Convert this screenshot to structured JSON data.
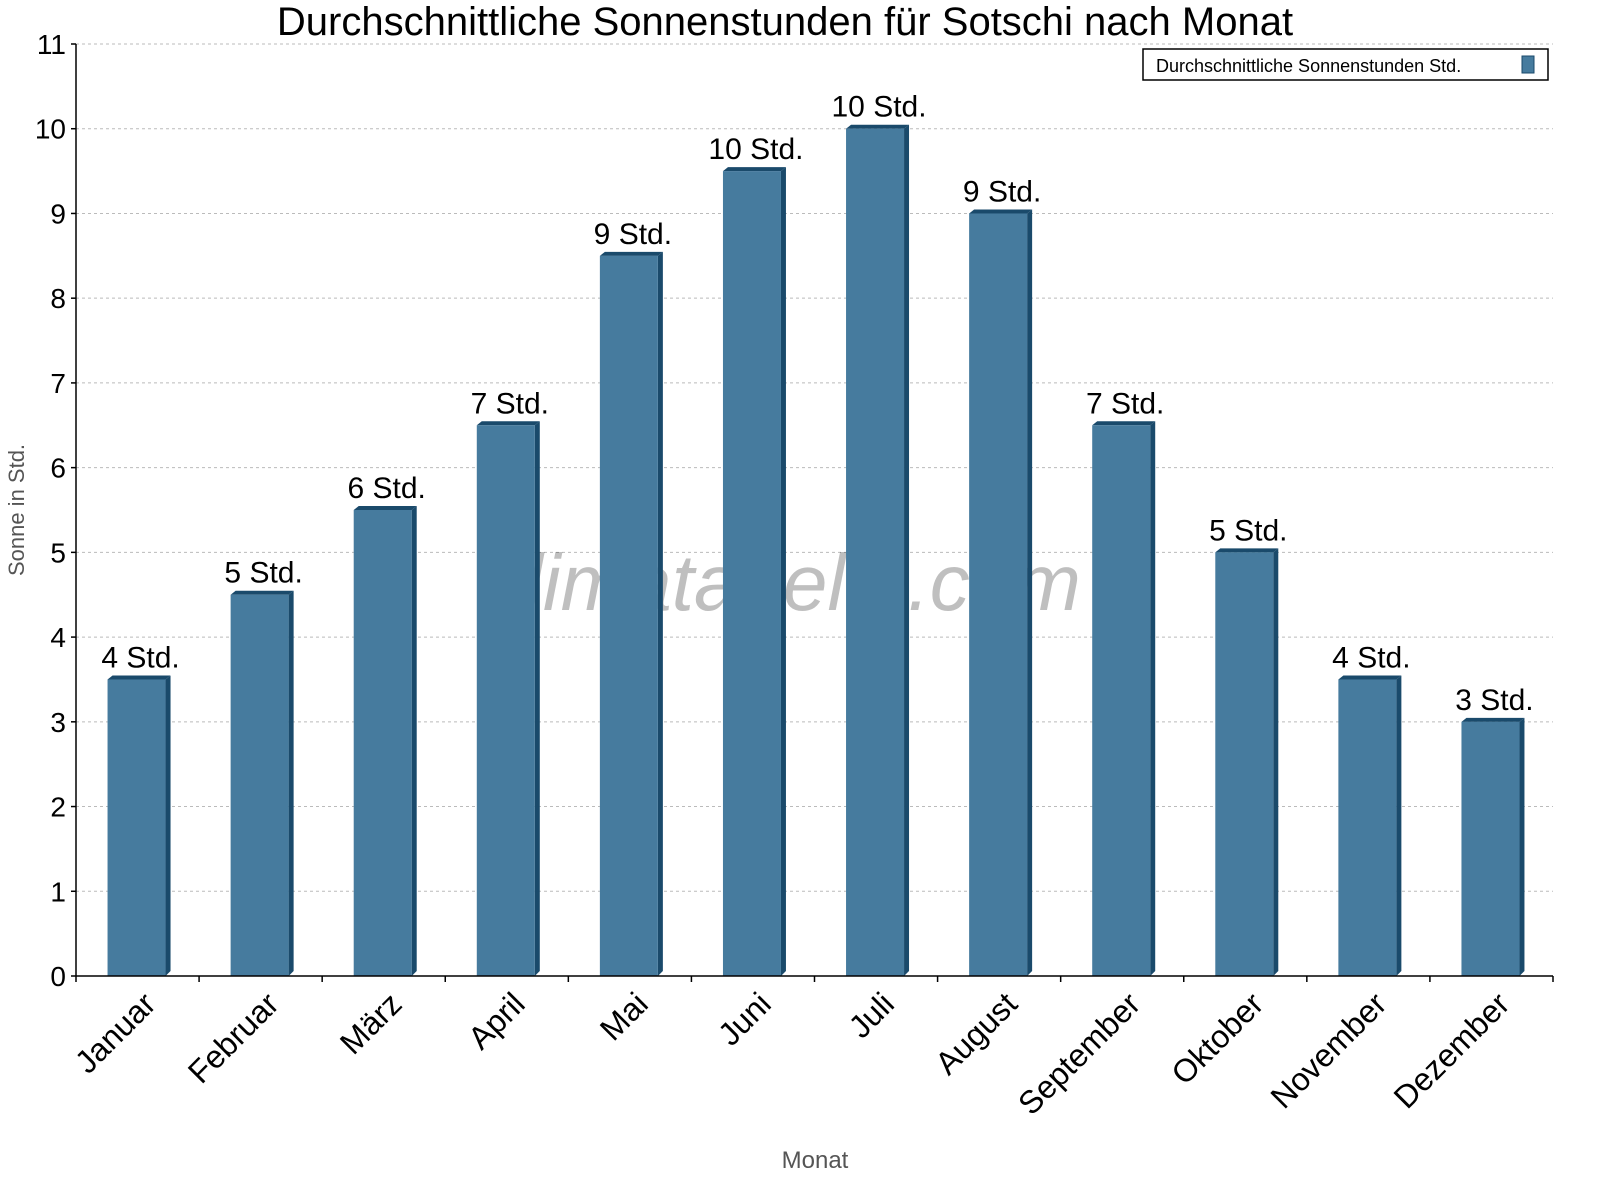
{
  "chart_data": {
    "type": "bar",
    "title": "Durchschnittliche Sonnenstunden für Sotschi nach Monat",
    "xlabel": "Monat",
    "ylabel": "Sonne in Std.",
    "ylim": [
      0,
      11
    ],
    "yticks": [
      "0",
      "1",
      "2",
      "3",
      "4",
      "5",
      "6",
      "7",
      "8",
      "9",
      "10",
      "11"
    ],
    "grid": true,
    "legend_placement": "top-right",
    "categories": [
      "Januar",
      "Februar",
      "März",
      "April",
      "Mai",
      "Juni",
      "Juli",
      "August",
      "September",
      "Oktober",
      "November",
      "Dezember"
    ],
    "series": [
      {
        "name": "Durchschnittliche Sonnenstunden Std.",
        "values": [
          3.5,
          4.5,
          5.5,
          6.5,
          8.5,
          9.5,
          10,
          9,
          6.5,
          5,
          3.5,
          3
        ],
        "data_labels": [
          "4 Std.",
          "5 Std.",
          "6 Std.",
          "7 Std.",
          "9 Std.",
          "10 Std.",
          "10 Std.",
          "9 Std.",
          "7 Std.",
          "5 Std.",
          "4 Std.",
          "3 Std."
        ],
        "color": "#467b9e",
        "side_color": "#1a4a6b"
      }
    ],
    "watermark": "klimatabelle.com"
  }
}
